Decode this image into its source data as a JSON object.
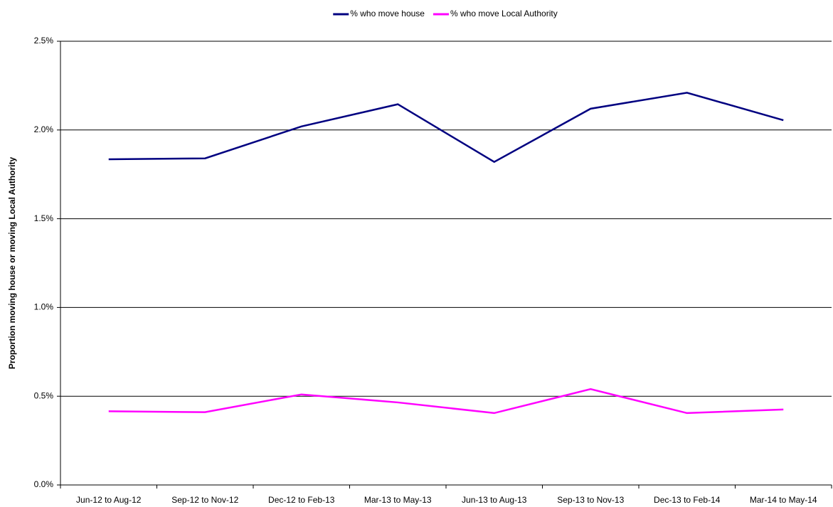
{
  "chart_data": {
    "type": "line",
    "y_label": "Proportion moving house or moving Local Authority",
    "categories": [
      "Jun-12 to Aug-12",
      "Sep-12 to Nov-12",
      "Dec-12 to Feb-13",
      "Mar-13 to May-13",
      "Jun-13 to Aug-13",
      "Sep-13 to Nov-13",
      "Dec-13 to Feb-14",
      "Mar-14 to May-14"
    ],
    "series": [
      {
        "name": "% who move house",
        "color": "#000080",
        "values": [
          1.835,
          1.84,
          2.02,
          2.145,
          1.82,
          2.12,
          2.21,
          2.055
        ]
      },
      {
        "name": "% who move Local Authority",
        "color": "#ff00ff",
        "values": [
          0.415,
          0.41,
          0.51,
          0.465,
          0.405,
          0.54,
          0.405,
          0.425
        ]
      }
    ],
    "ylim": [
      0,
      2.5
    ],
    "yticks": [
      {
        "value": 0,
        "label": "0.0%"
      },
      {
        "value": 0.5,
        "label": "0.5%"
      },
      {
        "value": 1,
        "label": "1.0%"
      },
      {
        "value": 1.5,
        "label": "1.5%"
      },
      {
        "value": 2,
        "label": "2.0%"
      },
      {
        "value": 2.5,
        "label": "2.5%"
      }
    ],
    "grid": true,
    "legend": "top"
  }
}
